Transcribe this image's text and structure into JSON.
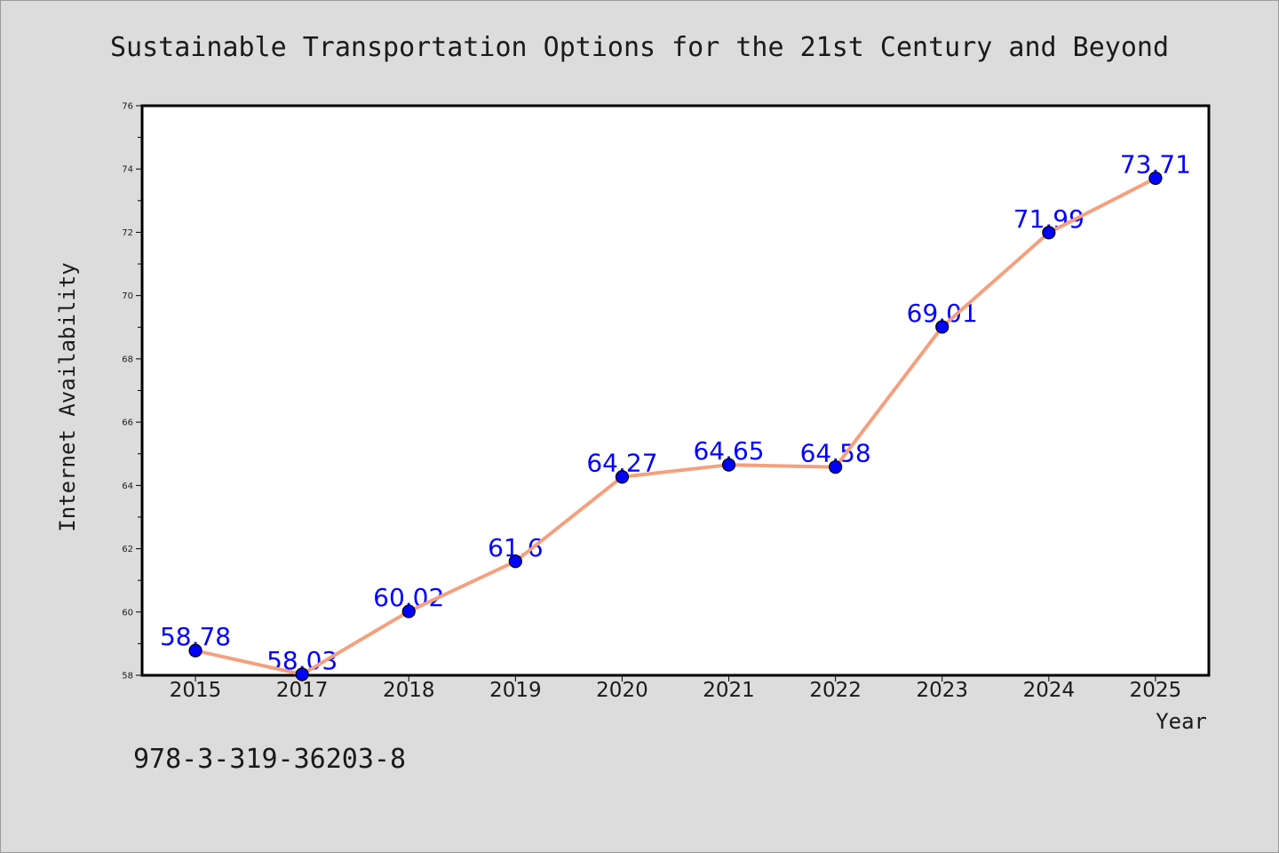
{
  "chart_data": {
    "type": "line",
    "title": "Sustainable Transportation Options for the 21st Century and Beyond",
    "xlabel": "Year",
    "ylabel": "Internet Availability",
    "categories": [
      "2015",
      "2017",
      "2018",
      "2019",
      "2020",
      "2021",
      "2022",
      "2023",
      "2024",
      "2025"
    ],
    "series": [
      {
        "values": [
          58.78,
          58.03,
          60.02,
          61.6,
          64.27,
          64.65,
          64.58,
          69.01,
          71.99,
          73.71
        ]
      }
    ],
    "ylim": [
      58,
      76
    ],
    "yticks": [
      58,
      60,
      62,
      64,
      66,
      68,
      70,
      72,
      74,
      76
    ],
    "data_labels": true,
    "grid": false,
    "legend": "none"
  },
  "footer": {
    "text": "978-3-319-36203-8"
  },
  "colors": {
    "background": "#dcdcdc",
    "plot_background": "#ffffff",
    "axis": "#000000",
    "line": "#f4a07e",
    "marker": "#0000ff",
    "data_label": "#0000ff"
  }
}
